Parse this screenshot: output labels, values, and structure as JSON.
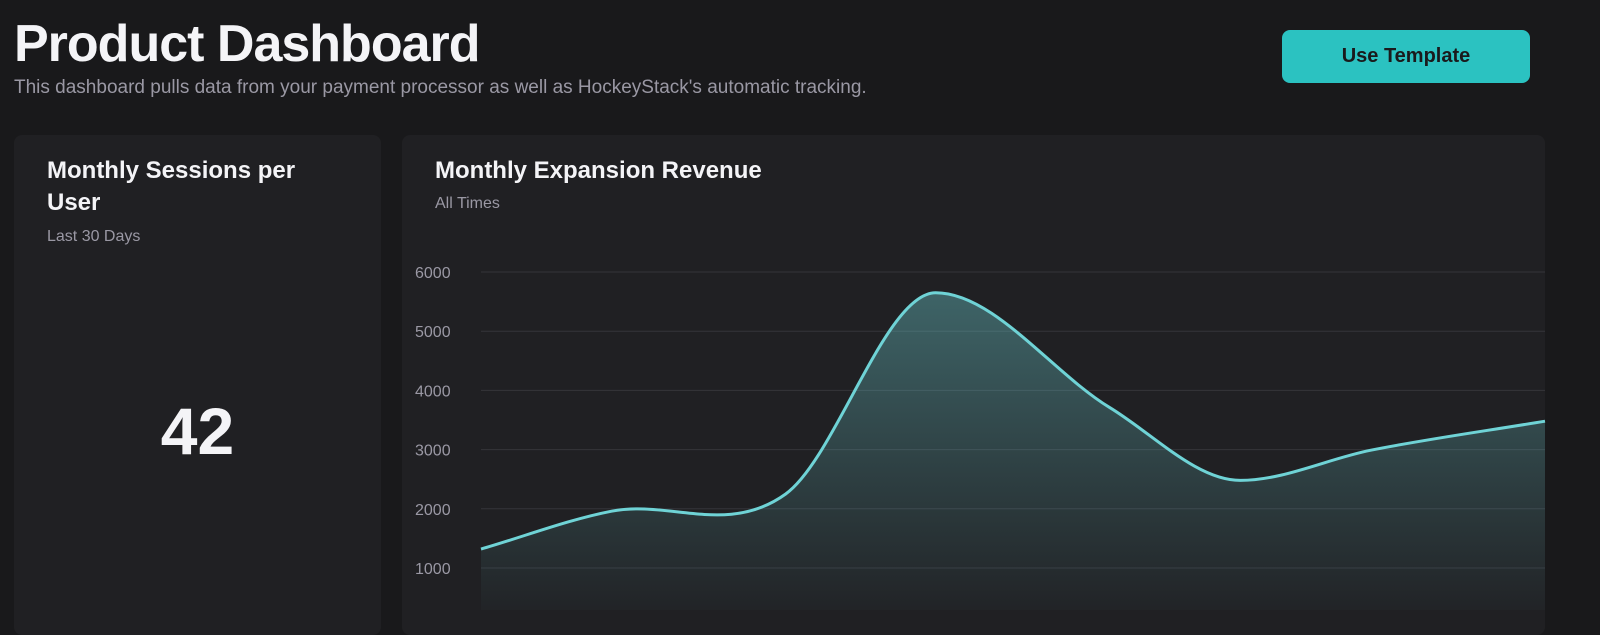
{
  "header": {
    "title": "Product Dashboard",
    "subtitle": "This dashboard pulls data from your payment processor as well as HockeyStack's automatic tracking.",
    "use_template_label": "Use Template"
  },
  "kpi_card": {
    "title": "Monthly Sessions per User",
    "period": "Last 30 Days",
    "value": "42"
  },
  "chart_card": {
    "title": "Monthly Expansion Revenue",
    "period": "All Times"
  },
  "colors": {
    "accent": "#2bc2c1",
    "line": "#6fd3d6",
    "background": "#19191b",
    "card": "#202023"
  },
  "chart_data": {
    "type": "area",
    "title": "Monthly Expansion Revenue",
    "subtitle": "All Times",
    "xlabel": "",
    "ylabel": "",
    "x": [
      0,
      1.35,
      3.15,
      4.7,
      6.5,
      7.85,
      9.2,
      11
    ],
    "values": [
      1320,
      1960,
      2250,
      5650,
      3710,
      2480,
      2990,
      3480
    ],
    "ylim": [
      1000,
      6000
    ],
    "yticks": [
      "1000",
      "2000",
      "3000",
      "4000",
      "5000",
      "6000"
    ],
    "grid": true,
    "legend": "none"
  }
}
